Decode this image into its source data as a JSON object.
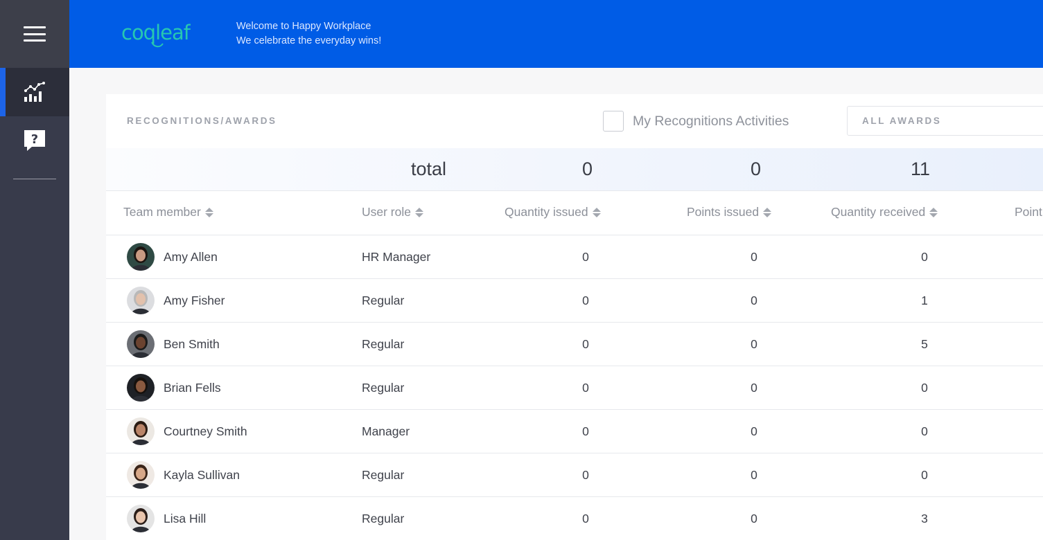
{
  "header": {
    "logo_text": "coqleaf",
    "tagline_line1": "Welcome to Happy Workplace",
    "tagline_line2": "We celebrate the everyday wins!"
  },
  "sidebar": {
    "items": [
      {
        "icon": "analytics-chart-icon",
        "active": true
      },
      {
        "icon": "help-question-icon",
        "active": false
      }
    ]
  },
  "card": {
    "title": "RECOGNITIONS/AWARDS",
    "my_recognitions_label": "My Recognitions Activities",
    "my_recognitions_checked": false,
    "award_filter": "ALL AWARDS"
  },
  "totals": {
    "label": "total",
    "quantity_issued": "0",
    "points_issued": "0",
    "quantity_received": "11"
  },
  "columns": {
    "team_member": "Team member",
    "user_role": "User role",
    "quantity_issued": "Quantity issued",
    "points_issued": "Points issued",
    "quantity_received": "Quantity received",
    "points_received": "Point"
  },
  "rows": [
    {
      "name": "Amy Allen",
      "role": "HR Manager",
      "qi": "0",
      "pi": "0",
      "qr": "0",
      "avatar_bg": "#2f4a44",
      "skin": "#c99a82",
      "hair": "#1c1410"
    },
    {
      "name": "Amy Fisher",
      "role": "Regular",
      "qi": "0",
      "pi": "0",
      "qr": "1",
      "avatar_bg": "#dcdde0",
      "skin": "#e2c1ac",
      "hair": "#b8b8b8"
    },
    {
      "name": "Ben Smith",
      "role": "Regular",
      "qi": "0",
      "pi": "0",
      "qr": "5",
      "avatar_bg": "#6b6e74",
      "skin": "#6b4330",
      "hair": "#1a1a1a"
    },
    {
      "name": "Brian Fells",
      "role": "Regular",
      "qi": "0",
      "pi": "0",
      "qr": "0",
      "avatar_bg": "#1e2126",
      "skin": "#8a5a40",
      "hair": "#16110d"
    },
    {
      "name": "Courtney Smith",
      "role": "Manager",
      "qi": "0",
      "pi": "0",
      "qr": "0",
      "avatar_bg": "#ece8e3",
      "skin": "#b98468",
      "hair": "#2a1b12"
    },
    {
      "name": "Kayla Sullivan",
      "role": "Regular",
      "qi": "0",
      "pi": "0",
      "qr": "0",
      "avatar_bg": "#efe9e4",
      "skin": "#d7a889",
      "hair": "#3a2418"
    },
    {
      "name": "Lisa Hill",
      "role": "Regular",
      "qi": "0",
      "pi": "0",
      "qr": "3",
      "avatar_bg": "#e4e4e4",
      "skin": "#e8c4ac",
      "hair": "#2a1d18"
    }
  ]
}
